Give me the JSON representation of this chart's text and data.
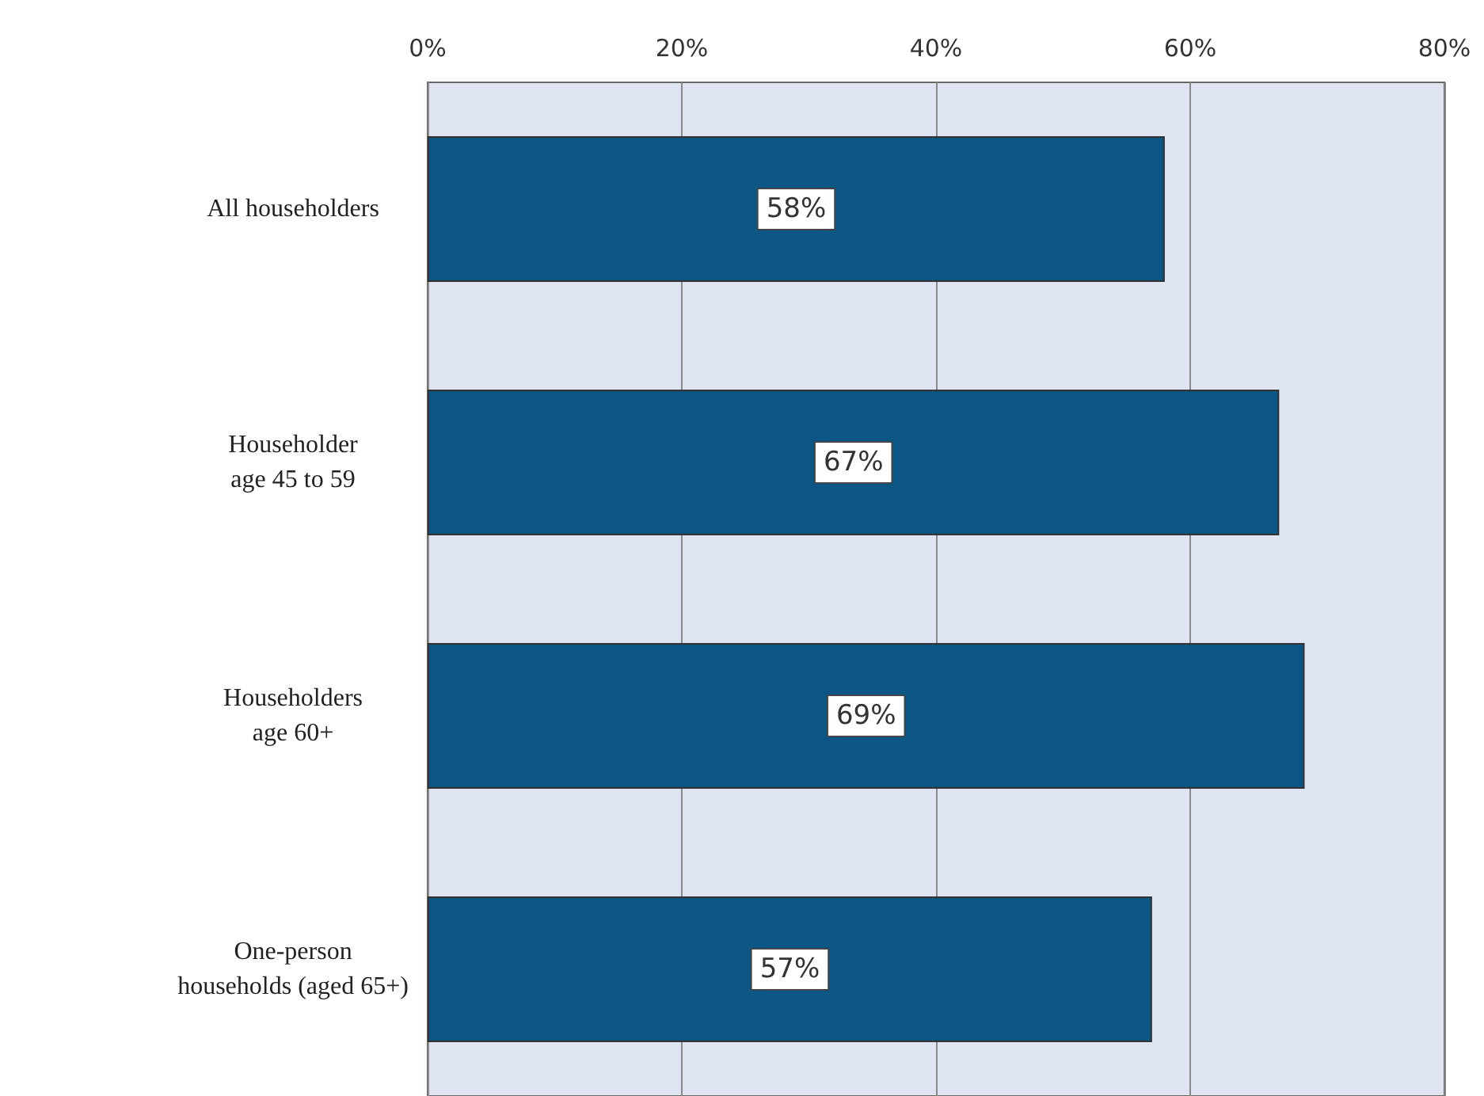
{
  "chart_data": {
    "type": "bar",
    "orientation": "horizontal",
    "categories": [
      "All householders",
      "Householder\nage 45 to 59",
      "Householders\nage 60+",
      "One-person\nhouseholds (aged 65+)"
    ],
    "values": [
      58,
      67,
      69,
      57
    ],
    "color": "#0b5685",
    "value_labels": [
      "58%",
      "67%",
      "69%",
      "57%"
    ],
    "xlim": [
      0,
      80
    ],
    "xticks": [
      {
        "value": 0,
        "label": "0%"
      },
      {
        "value": 20,
        "label": "20%"
      },
      {
        "value": 40,
        "label": "40%"
      },
      {
        "value": 60,
        "label": "60%"
      },
      {
        "value": 80,
        "label": "80%"
      }
    ],
    "grid": "x"
  }
}
